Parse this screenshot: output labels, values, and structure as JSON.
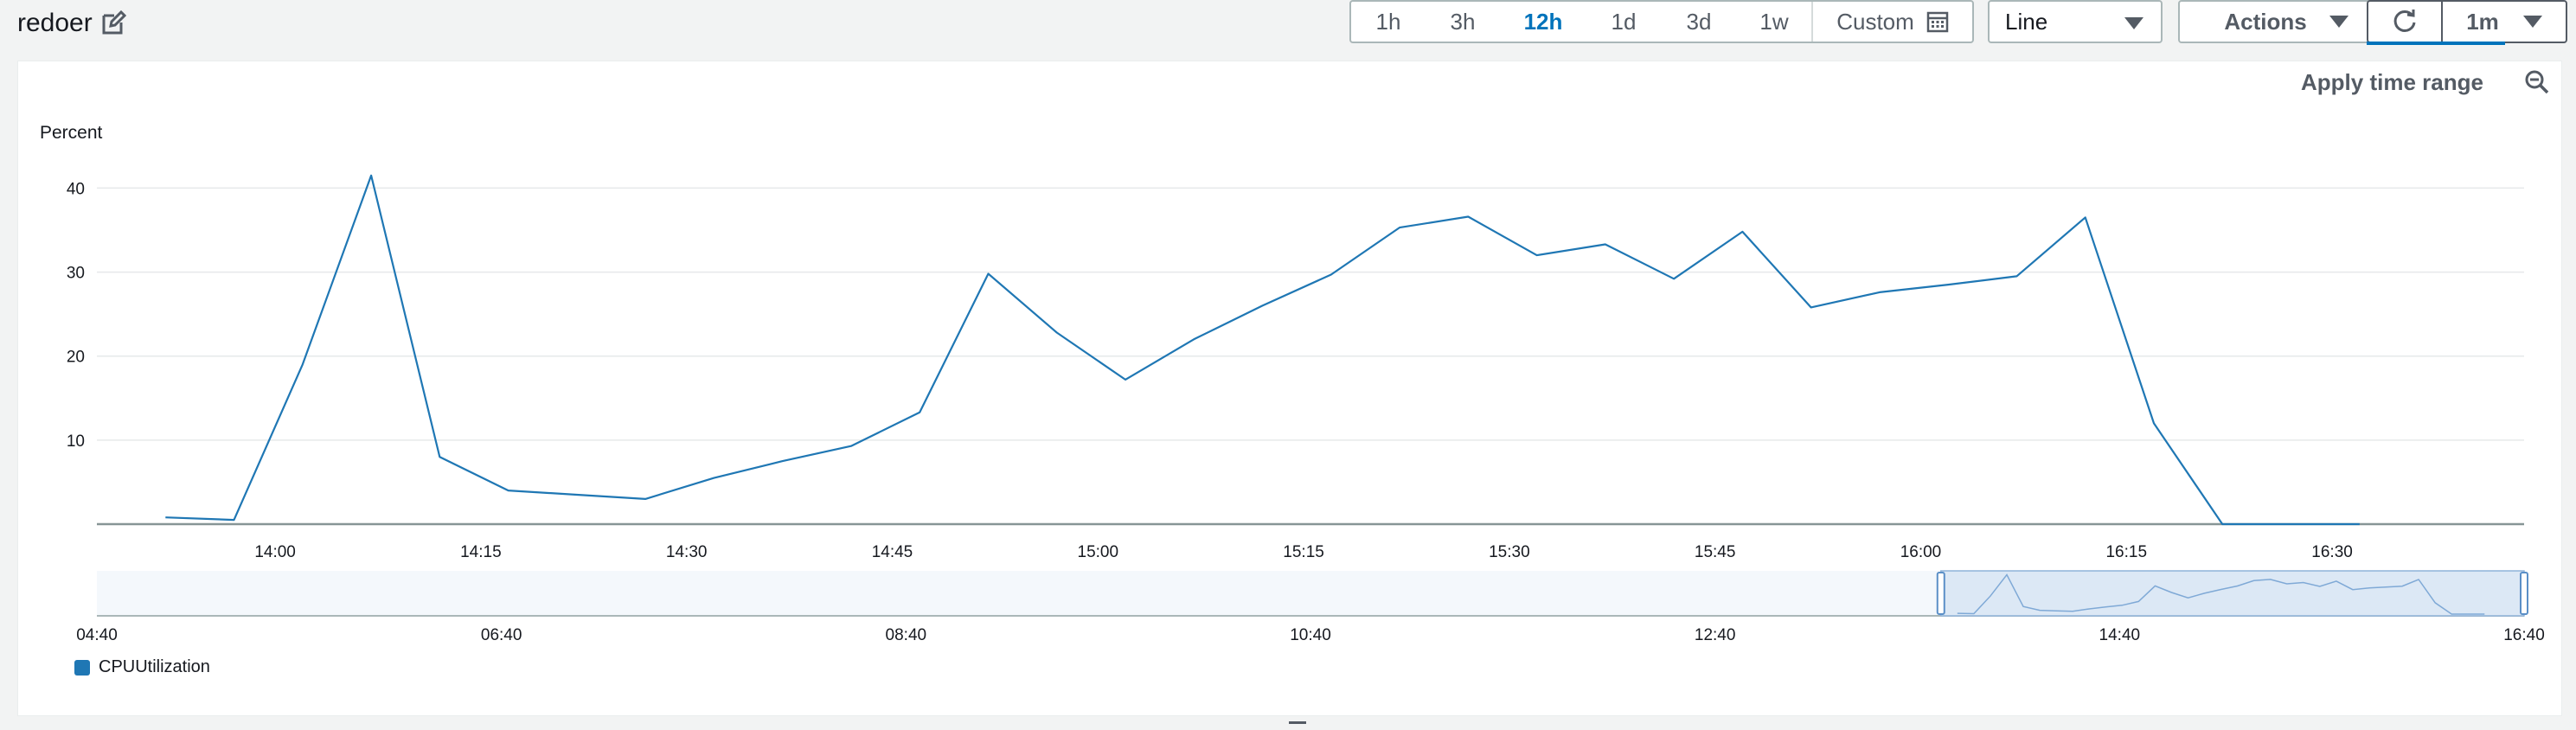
{
  "header": {
    "title": "redoer"
  },
  "time_ranges": [
    {
      "label": "1h",
      "active": false
    },
    {
      "label": "3h",
      "active": false
    },
    {
      "label": "12h",
      "active": true
    },
    {
      "label": "1d",
      "active": false
    },
    {
      "label": "3d",
      "active": false
    },
    {
      "label": "1w",
      "active": false
    }
  ],
  "custom_label": "Custom",
  "chart_type_select": {
    "value": "Line"
  },
  "actions_label": "Actions",
  "refresh_interval": "1m",
  "apply_time_range": "Apply time range",
  "colors": {
    "series": "#1f77b4",
    "accent": "#0073bb"
  },
  "chart_data": {
    "type": "line",
    "title": "",
    "ylabel": "Percent",
    "xlabel": "",
    "ylim": [
      0,
      42
    ],
    "yticks": [
      10,
      20,
      30,
      40
    ],
    "xrange": [
      "13:47",
      "16:44"
    ],
    "xticks": [
      "14:00",
      "14:15",
      "14:30",
      "14:45",
      "15:00",
      "15:15",
      "15:30",
      "15:45",
      "16:00",
      "16:15",
      "16:30"
    ],
    "grid": true,
    "series": [
      {
        "name": "CPUUtilization",
        "x": [
          "13:52",
          "13:57",
          "14:02",
          "14:07",
          "14:12",
          "14:17",
          "14:22",
          "14:27",
          "14:32",
          "14:37",
          "14:42",
          "14:47",
          "14:52",
          "14:57",
          "15:02",
          "15:07",
          "15:12",
          "15:17",
          "15:22",
          "15:27",
          "15:32",
          "15:37",
          "15:42",
          "15:47",
          "15:52",
          "15:57",
          "16:02",
          "16:07",
          "16:12",
          "16:17",
          "16:22",
          "16:27",
          "16:32"
        ],
        "values": [
          0.8,
          0.5,
          19.0,
          41.5,
          8.0,
          4.0,
          3.5,
          3.0,
          5.5,
          7.5,
          9.3,
          13.3,
          29.8,
          22.8,
          17.2,
          22.0,
          26.0,
          29.7,
          35.3,
          36.6,
          32.0,
          33.3,
          29.2,
          34.8,
          25.8,
          27.6,
          28.5,
          29.5,
          36.5,
          12.0,
          0.0,
          0.0,
          0.0
        ]
      }
    ],
    "overview": {
      "xticks": [
        "04:40",
        "06:40",
        "08:40",
        "10:40",
        "12:40",
        "14:40",
        "16:40"
      ],
      "range": [
        "04:40",
        "16:40"
      ],
      "selection": [
        "13:47",
        "16:44"
      ]
    },
    "legend": [
      "CPUUtilization"
    ],
    "legend_position": "bottom-left"
  }
}
